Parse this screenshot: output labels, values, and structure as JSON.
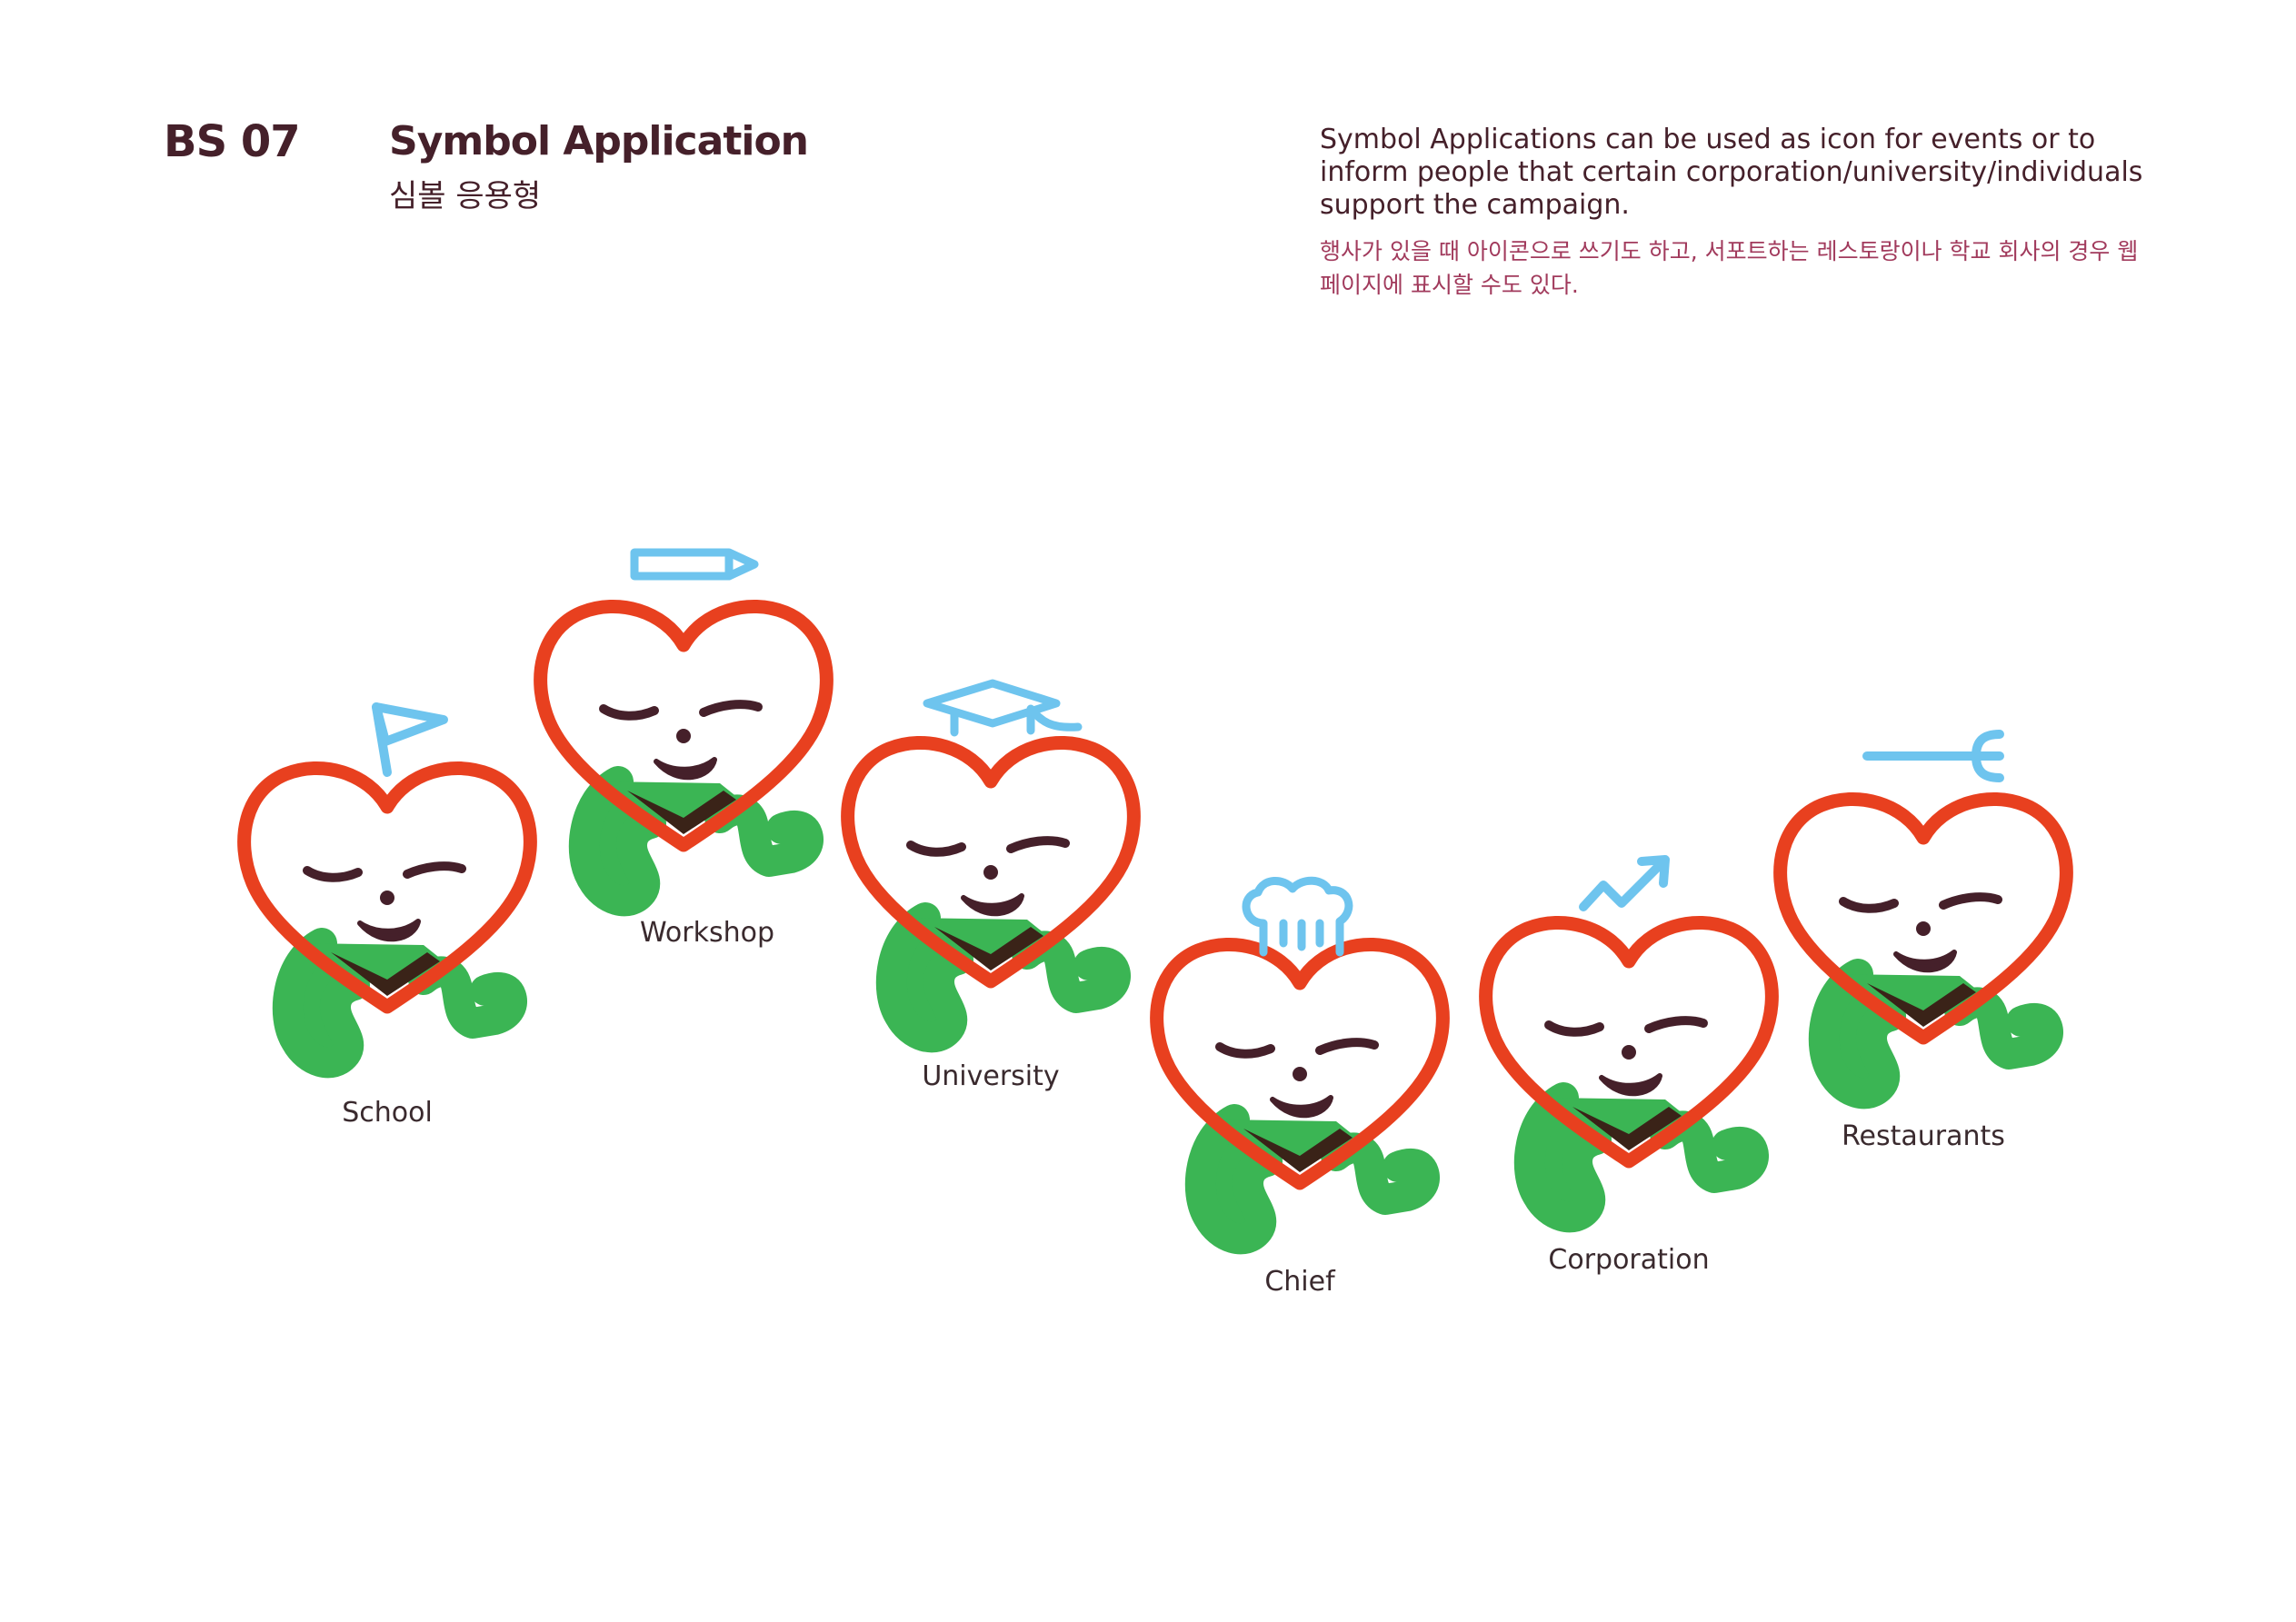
{
  "header": {
    "code": "BS 07",
    "title": "Symbol Application",
    "subtitle": "심볼 응용형"
  },
  "description": {
    "en": "Symbol Applications can be used as icon for events or to inform people that certain corporation/university/individuals support the campaign.",
    "ko": "행사가 있을 때 아이콘으로 쓰기도 하고, 서포트하는 레스토랑이나 학교 회사의 경우 웹페이지에 표시할 수도 있다."
  },
  "colors": {
    "heart": "#e8401f",
    "legs": "#3bb554",
    "face": "#45202a",
    "accessory": "#6ec4ee",
    "text": "#45202a",
    "korean": "#a13a5c"
  },
  "characters": [
    {
      "label": "School",
      "accessory": "flag-icon"
    },
    {
      "label": "Workshop",
      "accessory": "pencil-icon"
    },
    {
      "label": "University",
      "accessory": "graduation-cap-icon"
    },
    {
      "label": "Chief",
      "accessory": "chef-hat-icon"
    },
    {
      "label": "Corporation",
      "accessory": "trend-arrow-icon"
    },
    {
      "label": "Restaurants",
      "accessory": "fork-icon"
    }
  ]
}
